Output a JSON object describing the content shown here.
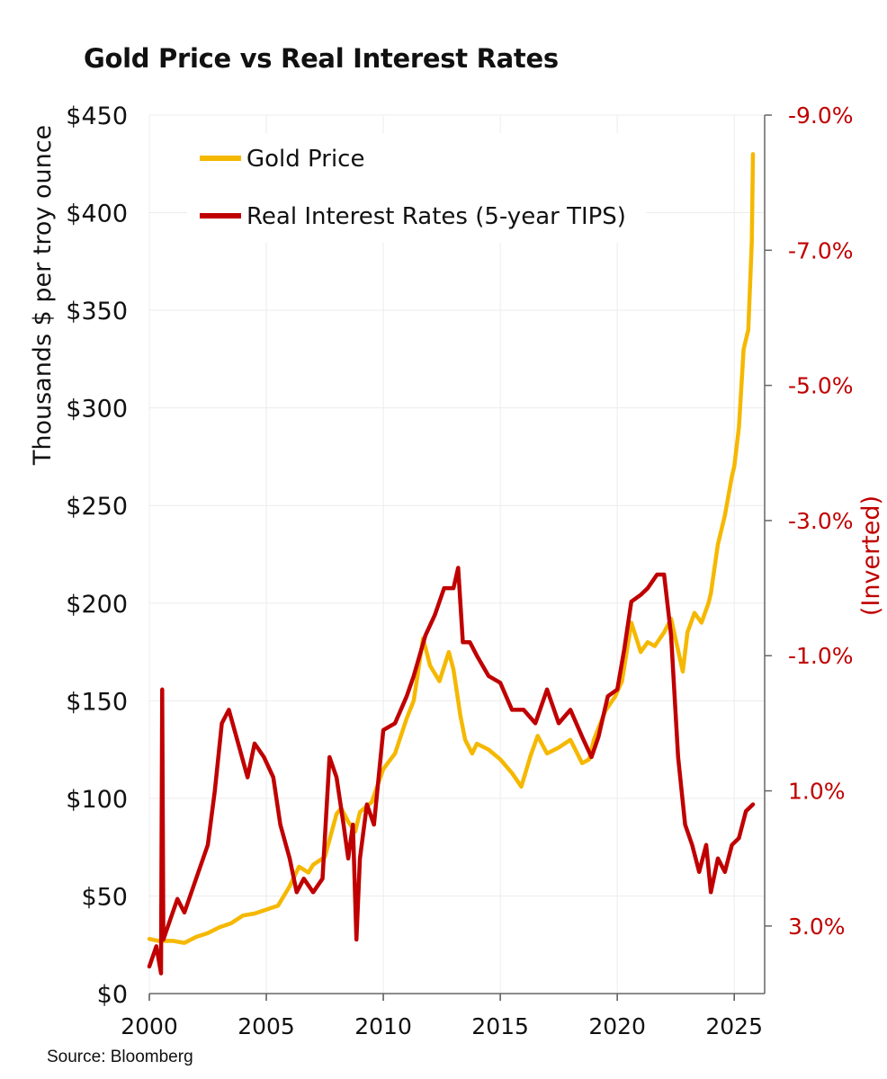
{
  "chart_data": {
    "type": "line",
    "title": "Gold Price vs Real Interest Rates",
    "source": "Source: Bloomberg",
    "left_axis": {
      "label": "Thousands $ per troy ounce",
      "ylim": [
        0,
        450
      ],
      "ticks": [
        0,
        50,
        100,
        150,
        200,
        250,
        300,
        350,
        400,
        450
      ],
      "tick_labels": [
        "$0",
        "$50",
        "$100",
        "$150",
        "$200",
        "$250",
        "$300",
        "$350",
        "$400",
        "$450"
      ]
    },
    "right_axis": {
      "label": "(Inverted)",
      "inverted": true,
      "ylim": [
        -9.0,
        4.0
      ],
      "ticks": [
        -9,
        -7,
        -5,
        -3,
        -1,
        1,
        3
      ],
      "tick_labels": [
        "-9.0%",
        "-7.0%",
        "-5.0%",
        "-3.0%",
        "-1.0%",
        "1.0%",
        "3.0%"
      ]
    },
    "x_axis": {
      "xlim": [
        2000,
        2026.3
      ],
      "ticks": [
        2000,
        2005,
        2010,
        2015,
        2020,
        2025
      ],
      "tick_labels": [
        "2000",
        "2005",
        "2010",
        "2015",
        "2020",
        "2025"
      ]
    },
    "grid": true,
    "legend_position": "top-left",
    "series": [
      {
        "name": "Gold Price",
        "axis": "left",
        "color": "#F5B800",
        "x": [
          2000,
          2000.4,
          2001,
          2001.5,
          2002,
          2002.5,
          2003,
          2003.5,
          2004,
          2004.5,
          2005,
          2005.5,
          2006,
          2006.4,
          2006.8,
          2007,
          2007.5,
          2008,
          2008.2,
          2008.5,
          2008.8,
          2009,
          2009.5,
          2010,
          2010.5,
          2011,
          2011.3,
          2011.7,
          2012,
          2012.4,
          2012.8,
          2013,
          2013.3,
          2013.5,
          2013.8,
          2014,
          2014.5,
          2015,
          2015.5,
          2015.9,
          2016.3,
          2016.6,
          2017,
          2017.5,
          2018,
          2018.5,
          2018.8,
          2019,
          2019.5,
          2019.9,
          2020.2,
          2020.6,
          2021,
          2021.3,
          2021.6,
          2022,
          2022.3,
          2022.8,
          2023,
          2023.3,
          2023.6,
          2023.9,
          2024,
          2024.3,
          2024.6,
          2024.9,
          2025,
          2025.2,
          2025.4,
          2025.6,
          2025.75,
          2025.8
        ],
        "values": [
          28,
          27,
          27,
          26,
          29,
          31,
          34,
          36,
          40,
          41,
          43,
          45,
          55,
          65,
          62,
          66,
          70,
          92,
          95,
          88,
          83,
          93,
          98,
          115,
          123,
          141,
          150,
          182,
          168,
          160,
          175,
          166,
          142,
          130,
          123,
          128,
          125,
          120,
          113,
          106,
          122,
          132,
          123,
          126,
          130,
          118,
          120,
          130,
          145,
          152,
          160,
          190,
          175,
          180,
          178,
          185,
          192,
          165,
          185,
          195,
          190,
          200,
          205,
          230,
          245,
          265,
          270,
          290,
          330,
          340,
          385,
          430
        ]
      },
      {
        "name": "Real Interest Rates (5-year TIPS)",
        "axis": "right",
        "color": "#C00000",
        "x": [
          2000,
          2000.3,
          2000.5,
          2000.55,
          2000.6,
          2000.9,
          2001.2,
          2001.5,
          2002,
          2002.5,
          2002.8,
          2003.1,
          2003.4,
          2003.8,
          2004.2,
          2004.5,
          2004.9,
          2005.3,
          2005.6,
          2006,
          2006.3,
          2006.6,
          2007,
          2007.4,
          2007.7,
          2008,
          2008.3,
          2008.5,
          2008.7,
          2008.85,
          2009,
          2009.3,
          2009.6,
          2010,
          2010.5,
          2011,
          2011.3,
          2011.8,
          2012.2,
          2012.6,
          2013,
          2013.2,
          2013.4,
          2013.7,
          2014,
          2014.5,
          2015,
          2015.5,
          2016,
          2016.5,
          2017,
          2017.5,
          2018,
          2018.5,
          2018.9,
          2019.2,
          2019.6,
          2020,
          2020.3,
          2020.6,
          2021,
          2021.3,
          2021.7,
          2022,
          2022.3,
          2022.6,
          2022.9,
          2023.2,
          2023.5,
          2023.8,
          2024,
          2024.3,
          2024.6,
          2024.9,
          2025.2,
          2025.5,
          2025.8
        ],
        "values": [
          3.6,
          3.3,
          3.7,
          -0.5,
          3.2,
          2.9,
          2.6,
          2.8,
          2.3,
          1.8,
          1.0,
          0.0,
          -0.2,
          0.3,
          0.8,
          0.3,
          0.5,
          0.8,
          1.5,
          2.0,
          2.5,
          2.3,
          2.5,
          2.3,
          0.5,
          0.8,
          1.5,
          2.0,
          1.5,
          3.2,
          2.0,
          1.2,
          1.5,
          0.1,
          0.0,
          -0.4,
          -0.7,
          -1.3,
          -1.6,
          -2.0,
          -2.0,
          -2.3,
          -1.2,
          -1.2,
          -1.0,
          -0.7,
          -0.6,
          -0.2,
          -0.2,
          0.0,
          -0.5,
          0.0,
          -0.2,
          0.2,
          0.5,
          0.2,
          -0.4,
          -0.5,
          -1.1,
          -1.8,
          -1.9,
          -2.0,
          -2.2,
          -2.2,
          -1.3,
          0.5,
          1.5,
          1.8,
          2.2,
          1.8,
          2.5,
          2.0,
          2.2,
          1.8,
          1.7,
          1.3,
          1.2
        ]
      }
    ]
  }
}
